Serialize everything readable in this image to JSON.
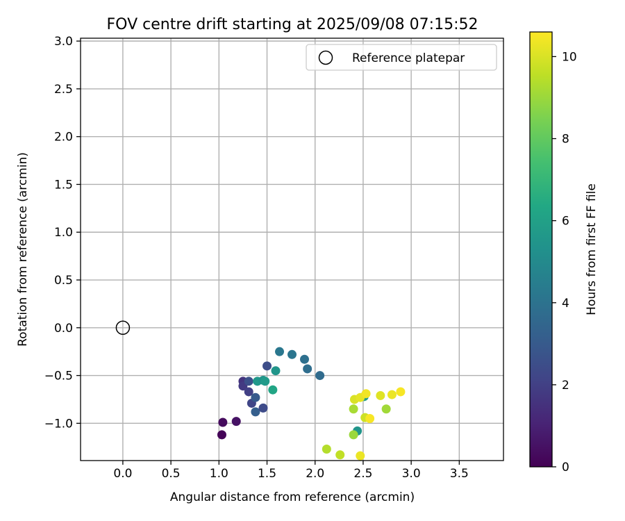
{
  "chart_data": {
    "type": "scatter",
    "title": "FOV centre drift starting at 2025/09/08 07:15:52",
    "xlabel": "Angular distance from reference (arcmin)",
    "ylabel": "Rotation from reference (arcmin)",
    "xlim": [
      -0.44,
      3.96
    ],
    "ylim": [
      -1.39,
      3.03
    ],
    "xticks": [
      0.0,
      0.5,
      1.0,
      1.5,
      2.0,
      2.5,
      3.0,
      3.5
    ],
    "xtick_labels": [
      "0.0",
      "0.5",
      "1.0",
      "1.5",
      "2.0",
      "2.5",
      "3.0",
      "3.5"
    ],
    "yticks": [
      -1.0,
      -0.5,
      0.0,
      0.5,
      1.0,
      1.5,
      2.0,
      2.5,
      3.0
    ],
    "ytick_labels": [
      "−1.0",
      "−0.5",
      "0.0",
      "0.5",
      "1.0",
      "1.5",
      "2.0",
      "2.5",
      "3.0"
    ],
    "grid": true,
    "legend": {
      "placement": "top-right",
      "entries": [
        {
          "label": "Reference platepar",
          "marker": "open-circle"
        }
      ]
    },
    "reference_point": {
      "x": 0.0,
      "y": 0.0
    },
    "colormap": "viridis",
    "colorbar": {
      "label": "Hours from first FF file",
      "range": [
        0,
        10.6
      ],
      "ticks": [
        0,
        2,
        4,
        6,
        8,
        10
      ],
      "tick_labels": [
        "0",
        "2",
        "4",
        "6",
        "8",
        "10"
      ]
    },
    "points": [
      {
        "x": 1.03,
        "y": -1.12,
        "hours": 0.1
      },
      {
        "x": 1.04,
        "y": -0.99,
        "hours": 0.3
      },
      {
        "x": 1.18,
        "y": -0.98,
        "hours": 0.5
      },
      {
        "x": 1.25,
        "y": -0.56,
        "hours": 1.6
      },
      {
        "x": 1.25,
        "y": -0.61,
        "hours": 1.8
      },
      {
        "x": 1.31,
        "y": -0.56,
        "hours": 2.6
      },
      {
        "x": 1.31,
        "y": -0.67,
        "hours": 2.0
      },
      {
        "x": 1.34,
        "y": -0.79,
        "hours": 2.2
      },
      {
        "x": 1.38,
        "y": -0.73,
        "hours": 3.0
      },
      {
        "x": 1.38,
        "y": -0.88,
        "hours": 3.2
      },
      {
        "x": 1.46,
        "y": -0.84,
        "hours": 2.4
      },
      {
        "x": 1.5,
        "y": -0.4,
        "hours": 2.5
      },
      {
        "x": 1.4,
        "y": -0.56,
        "hours": 5.6
      },
      {
        "x": 1.46,
        "y": -0.55,
        "hours": 5.4
      },
      {
        "x": 1.48,
        "y": -0.56,
        "hours": 5.7
      },
      {
        "x": 1.56,
        "y": -0.65,
        "hours": 6.2
      },
      {
        "x": 1.59,
        "y": -0.45,
        "hours": 5.5
      },
      {
        "x": 1.63,
        "y": -0.25,
        "hours": 4.2
      },
      {
        "x": 1.76,
        "y": -0.28,
        "hours": 4.1
      },
      {
        "x": 1.89,
        "y": -0.33,
        "hours": 3.9
      },
      {
        "x": 1.92,
        "y": -0.43,
        "hours": 3.8
      },
      {
        "x": 2.05,
        "y": -0.5,
        "hours": 3.7
      },
      {
        "x": 2.44,
        "y": -1.08,
        "hours": 5.5
      },
      {
        "x": 2.51,
        "y": -0.72,
        "hours": 5.8
      },
      {
        "x": 2.12,
        "y": -1.27,
        "hours": 9.4
      },
      {
        "x": 2.26,
        "y": -1.33,
        "hours": 9.6
      },
      {
        "x": 2.4,
        "y": -1.12,
        "hours": 9.0
      },
      {
        "x": 2.4,
        "y": -0.85,
        "hours": 9.2
      },
      {
        "x": 2.47,
        "y": -1.34,
        "hours": 10.3
      },
      {
        "x": 2.41,
        "y": -0.75,
        "hours": 10.0
      },
      {
        "x": 2.47,
        "y": -0.73,
        "hours": 10.2
      },
      {
        "x": 2.52,
        "y": -0.94,
        "hours": 9.8
      },
      {
        "x": 2.53,
        "y": -0.69,
        "hours": 10.4
      },
      {
        "x": 2.57,
        "y": -0.95,
        "hours": 10.5
      },
      {
        "x": 2.68,
        "y": -0.71,
        "hours": 10.1
      },
      {
        "x": 2.74,
        "y": -0.85,
        "hours": 9.1
      },
      {
        "x": 2.8,
        "y": -0.7,
        "hours": 10.3
      },
      {
        "x": 2.89,
        "y": -0.67,
        "hours": 10.5
      }
    ]
  }
}
